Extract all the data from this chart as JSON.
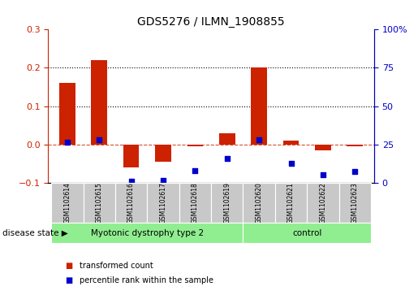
{
  "title": "GDS5276 / ILMN_1908855",
  "samples": [
    "GSM1102614",
    "GSM1102615",
    "GSM1102616",
    "GSM1102617",
    "GSM1102618",
    "GSM1102619",
    "GSM1102620",
    "GSM1102621",
    "GSM1102622",
    "GSM1102623"
  ],
  "transformed_count": [
    0.16,
    0.22,
    -0.06,
    -0.045,
    -0.005,
    0.03,
    0.2,
    0.01,
    -0.015,
    -0.005
  ],
  "percentile_rank": [
    26.5,
    28.0,
    1.0,
    1.5,
    8.0,
    16.0,
    28.0,
    13.0,
    5.5,
    7.5
  ],
  "ylim_left": [
    -0.1,
    0.3
  ],
  "ylim_right": [
    0,
    100
  ],
  "yticks_left": [
    -0.1,
    0.0,
    0.1,
    0.2,
    0.3
  ],
  "yticks_right": [
    0,
    25,
    50,
    75,
    100
  ],
  "groups": [
    {
      "label": "Myotonic dystrophy type 2",
      "start": 0,
      "end": 6,
      "color": "#90EE90"
    },
    {
      "label": "control",
      "start": 6,
      "end": 10,
      "color": "#90EE90"
    }
  ],
  "bar_color": "#CC2200",
  "dot_color": "#0000CC",
  "grid_dotted_values": [
    0.1,
    0.2
  ],
  "zero_line_color": "#CC2200",
  "background_color": "#ffffff",
  "label_box_color": "#C8C8C8",
  "legend_bar_label": "transformed count",
  "legend_dot_label": "percentile rank within the sample",
  "disease_state_label": "disease state"
}
